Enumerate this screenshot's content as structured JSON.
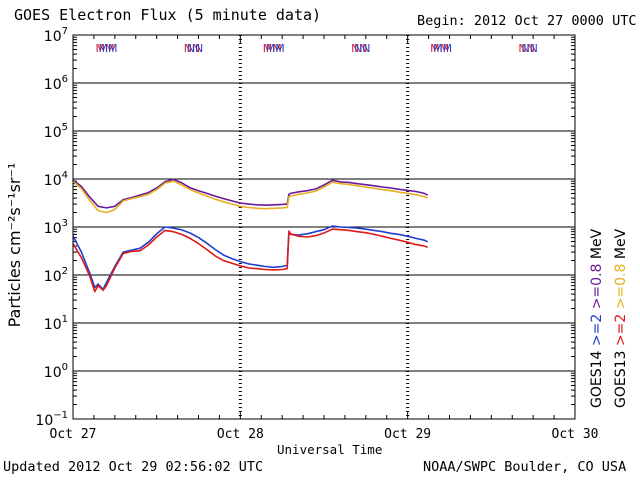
{
  "header": {
    "title": "GOES Electron Flux (5 minute data)",
    "begin": "Begin: 2012 Oct 27 0000 UTC"
  },
  "footer": {
    "updated": "Updated 2012 Oct 29 02:56:02 UTC",
    "credit": "NOAA/SWPC Boulder, CO USA"
  },
  "colors": {
    "goes14_hi": "#6a1b9a",
    "goes13_hi": "#e8b020",
    "goes14_lo": "#1f3fd0",
    "goes13_lo": "#e01818",
    "dashed_threshold": "#000000"
  },
  "chart_data": {
    "type": "line",
    "title": "GOES Electron Flux (5 minute data)",
    "xlabel": "Universal Time",
    "ylabel": "Particles cm⁻²s⁻¹sr⁻¹",
    "yscale": "log",
    "ylim_exp": [
      -1,
      7
    ],
    "y_tick_exponents": [
      7,
      6,
      5,
      4,
      3,
      2,
      1,
      0,
      -1
    ],
    "xlim_days": [
      0,
      3
    ],
    "x_tick_labels": [
      "Oct 27",
      "Oct 28",
      "Oct 29",
      "Oct 30"
    ],
    "threshold": 1000,
    "markers": [
      {
        "day": 0.2,
        "label": "MM"
      },
      {
        "day": 0.72,
        "label": "NN"
      },
      {
        "day": 1.2,
        "label": "MM"
      },
      {
        "day": 1.72,
        "label": "NN"
      },
      {
        "day": 2.2,
        "label": "MM"
      },
      {
        "day": 2.72,
        "label": "NN"
      }
    ],
    "legend": [
      {
        "text": "GOES14",
        "color": "#000000"
      },
      {
        "text": ">=2",
        "color": "#1f3fd0"
      },
      {
        "text": ">=0.8",
        "color": "#6a1b9a"
      },
      {
        "text": "MeV",
        "color": "#000000"
      },
      {
        "text": "GOES13",
        "color": "#000000"
      },
      {
        "text": ">=2",
        "color": "#e01818"
      },
      {
        "text": ">=0.8",
        "color": "#e8b020"
      },
      {
        "text": "MeV",
        "color": "#000000"
      }
    ],
    "series": [
      {
        "name": "GOES14 >=0.8 MeV",
        "color": "#6a1b9a",
        "x": [
          0,
          0.05,
          0.1,
          0.15,
          0.2,
          0.25,
          0.3,
          0.35,
          0.4,
          0.45,
          0.5,
          0.55,
          0.6,
          0.65,
          0.7,
          0.75,
          0.8,
          0.85,
          0.9,
          0.95,
          1.0,
          1.05,
          1.1,
          1.15,
          1.2,
          1.25,
          1.28,
          1.29,
          1.3,
          1.35,
          1.4,
          1.45,
          1.5,
          1.55,
          1.6,
          1.65,
          1.7,
          1.75,
          1.8,
          1.85,
          1.9,
          1.95,
          2.0,
          2.05,
          2.1,
          2.12
        ],
        "y": [
          9500,
          7000,
          4200,
          2700,
          2500,
          2700,
          3700,
          4100,
          4600,
          5200,
          6500,
          8800,
          9800,
          8300,
          6600,
          5700,
          5000,
          4400,
          3900,
          3500,
          3150,
          3000,
          2900,
          2850,
          2900,
          2950,
          3000,
          4800,
          5000,
          5400,
          5700,
          6200,
          7500,
          9400,
          8700,
          8500,
          8000,
          7600,
          7200,
          6800,
          6500,
          6100,
          5800,
          5500,
          5000,
          4600
        ]
      },
      {
        "name": "GOES13 >=0.8 MeV",
        "color": "#e8b020",
        "x": [
          0,
          0.05,
          0.1,
          0.15,
          0.2,
          0.25,
          0.3,
          0.35,
          0.4,
          0.45,
          0.5,
          0.55,
          0.6,
          0.65,
          0.7,
          0.75,
          0.8,
          0.85,
          0.9,
          0.95,
          1.0,
          1.05,
          1.1,
          1.15,
          1.2,
          1.25,
          1.28,
          1.29,
          1.3,
          1.35,
          1.4,
          1.45,
          1.5,
          1.55,
          1.6,
          1.65,
          1.7,
          1.75,
          1.8,
          1.85,
          1.9,
          1.95,
          2.0,
          2.05,
          2.1,
          2.12
        ],
        "y": [
          9000,
          6300,
          3600,
          2200,
          2000,
          2300,
          3500,
          3900,
          4300,
          4800,
          6000,
          8200,
          9000,
          7500,
          6000,
          5100,
          4400,
          3800,
          3350,
          3000,
          2700,
          2550,
          2450,
          2400,
          2450,
          2500,
          2550,
          4200,
          4400,
          4800,
          5100,
          5600,
          6800,
          8600,
          8000,
          7700,
          7200,
          6800,
          6400,
          6000,
          5700,
          5300,
          5000,
          4700,
          4300,
          4000
        ]
      },
      {
        "name": "GOES14 >=2 MeV",
        "color": "#1f3fd0",
        "x": [
          0,
          0.05,
          0.1,
          0.13,
          0.15,
          0.18,
          0.2,
          0.25,
          0.3,
          0.35,
          0.4,
          0.45,
          0.5,
          0.55,
          0.6,
          0.65,
          0.7,
          0.75,
          0.8,
          0.85,
          0.9,
          0.95,
          1.0,
          1.05,
          1.1,
          1.15,
          1.2,
          1.25,
          1.28,
          1.29,
          1.3,
          1.35,
          1.4,
          1.45,
          1.5,
          1.55,
          1.6,
          1.65,
          1.7,
          1.75,
          1.8,
          1.85,
          1.9,
          1.95,
          2.0,
          2.05,
          2.1,
          2.12
        ],
        "y": [
          650,
          300,
          110,
          55,
          65,
          50,
          70,
          150,
          300,
          330,
          360,
          480,
          720,
          1000,
          950,
          870,
          750,
          600,
          460,
          340,
          260,
          220,
          190,
          170,
          160,
          150,
          145,
          150,
          160,
          760,
          700,
          680,
          720,
          800,
          880,
          1050,
          1000,
          980,
          950,
          900,
          850,
          800,
          740,
          700,
          640,
          580,
          530,
          490
        ]
      },
      {
        "name": "GOES13 >=2 MeV",
        "color": "#e01818",
        "x": [
          0,
          0.05,
          0.1,
          0.13,
          0.15,
          0.18,
          0.2,
          0.25,
          0.3,
          0.35,
          0.4,
          0.45,
          0.5,
          0.55,
          0.6,
          0.65,
          0.7,
          0.75,
          0.8,
          0.85,
          0.9,
          0.95,
          1.0,
          1.05,
          1.1,
          1.15,
          1.2,
          1.25,
          1.28,
          1.29,
          1.3,
          1.35,
          1.4,
          1.45,
          1.5,
          1.55,
          1.6,
          1.65,
          1.7,
          1.75,
          1.8,
          1.85,
          1.9,
          1.95,
          2.0,
          2.05,
          2.1,
          2.12
        ],
        "y": [
          450,
          230,
          95,
          45,
          60,
          48,
          60,
          140,
          280,
          310,
          320,
          420,
          620,
          850,
          800,
          700,
          580,
          450,
          340,
          250,
          200,
          175,
          155,
          140,
          135,
          130,
          128,
          130,
          135,
          820,
          720,
          640,
          620,
          660,
          750,
          900,
          880,
          850,
          800,
          760,
          700,
          640,
          580,
          530,
          480,
          430,
          400,
          380
        ]
      }
    ]
  }
}
